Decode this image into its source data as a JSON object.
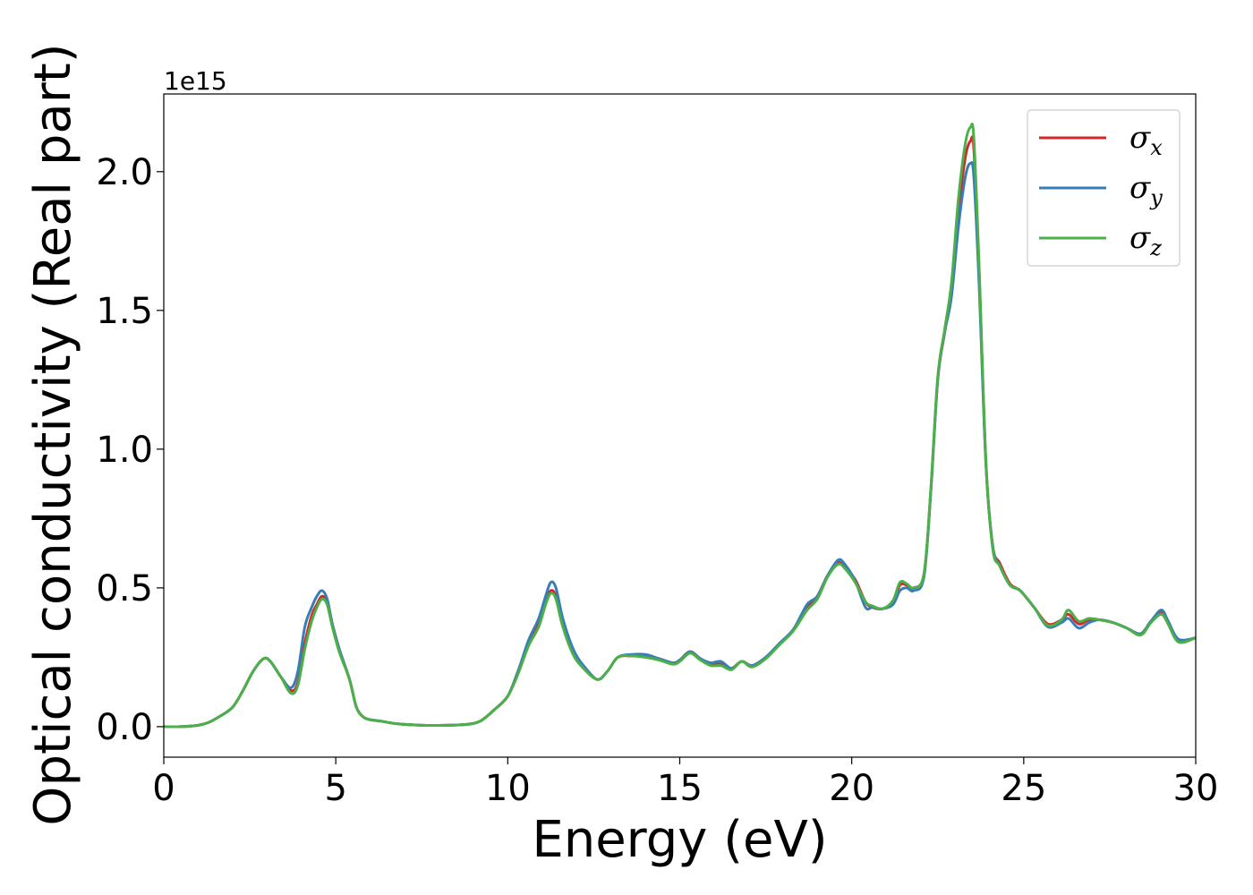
{
  "chart_data": {
    "type": "line",
    "xlabel": "Energy (eV)",
    "ylabel": "Optical conductivity (Real part)",
    "y_offset_label": "1e15",
    "xlim": [
      0,
      30
    ],
    "ylim": [
      -0.11,
      2.28
    ],
    "x_ticks": [
      0,
      5,
      10,
      15,
      20,
      25,
      30
    ],
    "x_tick_labels": [
      "0",
      "5",
      "10",
      "15",
      "20",
      "25",
      "30"
    ],
    "y_ticks": [
      0.0,
      0.5,
      1.0,
      1.5,
      2.0
    ],
    "y_tick_labels": [
      "0.0",
      "0.5",
      "1.0",
      "1.5",
      "2.0"
    ],
    "grid": false,
    "legend_position": "top-right",
    "x": [
      0,
      0.5,
      1.0,
      1.3,
      1.6,
      2.0,
      2.3,
      2.6,
      2.9,
      3.1,
      3.4,
      3.7,
      3.9,
      4.1,
      4.3,
      4.45,
      4.6,
      4.75,
      4.9,
      5.1,
      5.4,
      5.6,
      5.8,
      6.0,
      6.3,
      6.8,
      7.5,
      8.2,
      8.8,
      9.2,
      9.6,
      10.0,
      10.3,
      10.6,
      10.9,
      11.1,
      11.25,
      11.4,
      11.6,
      11.9,
      12.2,
      12.6,
      12.9,
      13.2,
      13.6,
      14.0,
      14.4,
      14.8,
      15.0,
      15.3,
      15.6,
      15.9,
      16.2,
      16.5,
      16.8,
      17.1,
      17.5,
      17.9,
      18.3,
      18.7,
      19.0,
      19.3,
      19.6,
      19.8,
      20.1,
      20.4,
      20.6,
      20.9,
      21.2,
      21.4,
      21.6,
      21.8,
      22.1,
      22.3,
      22.5,
      22.7,
      22.9,
      23.1,
      23.3,
      23.45,
      23.55,
      23.7,
      23.9,
      24.1,
      24.3,
      24.6,
      24.9,
      25.3,
      25.7,
      26.1,
      26.3,
      26.6,
      26.9,
      27.2,
      27.6,
      28.0,
      28.4,
      28.7,
      29.0,
      29.2,
      29.5,
      30.0
    ],
    "series": [
      {
        "name": "σx",
        "color": "#d62728",
        "values": [
          0.0,
          0.0,
          0.005,
          0.015,
          0.035,
          0.07,
          0.13,
          0.2,
          0.245,
          0.235,
          0.18,
          0.13,
          0.16,
          0.3,
          0.4,
          0.44,
          0.47,
          0.45,
          0.37,
          0.28,
          0.17,
          0.07,
          0.035,
          0.025,
          0.02,
          0.01,
          0.005,
          0.005,
          0.008,
          0.02,
          0.06,
          0.11,
          0.2,
          0.3,
          0.37,
          0.45,
          0.49,
          0.47,
          0.37,
          0.27,
          0.22,
          0.17,
          0.2,
          0.25,
          0.255,
          0.255,
          0.245,
          0.23,
          0.24,
          0.27,
          0.245,
          0.225,
          0.225,
          0.21,
          0.235,
          0.22,
          0.25,
          0.3,
          0.35,
          0.43,
          0.47,
          0.545,
          0.59,
          0.575,
          0.53,
          0.45,
          0.43,
          0.425,
          0.45,
          0.51,
          0.51,
          0.5,
          0.55,
          0.85,
          1.25,
          1.42,
          1.58,
          1.85,
          2.05,
          2.11,
          2.08,
          1.65,
          0.95,
          0.65,
          0.59,
          0.515,
          0.49,
          0.43,
          0.37,
          0.385,
          0.405,
          0.37,
          0.385,
          0.385,
          0.375,
          0.355,
          0.335,
          0.38,
          0.415,
          0.37,
          0.31,
          0.32
        ]
      },
      {
        "name": "σy",
        "color": "#377eb8",
        "values": [
          0.0,
          0.0,
          0.005,
          0.015,
          0.035,
          0.07,
          0.13,
          0.2,
          0.245,
          0.235,
          0.18,
          0.14,
          0.2,
          0.36,
          0.43,
          0.47,
          0.49,
          0.46,
          0.37,
          0.28,
          0.17,
          0.07,
          0.035,
          0.025,
          0.02,
          0.01,
          0.005,
          0.005,
          0.008,
          0.02,
          0.06,
          0.11,
          0.2,
          0.31,
          0.39,
          0.47,
          0.52,
          0.5,
          0.39,
          0.28,
          0.22,
          0.17,
          0.2,
          0.25,
          0.26,
          0.26,
          0.245,
          0.23,
          0.24,
          0.27,
          0.245,
          0.23,
          0.235,
          0.21,
          0.235,
          0.22,
          0.25,
          0.3,
          0.35,
          0.44,
          0.47,
          0.545,
          0.6,
          0.585,
          0.525,
          0.43,
          0.43,
          0.425,
          0.44,
          0.49,
          0.5,
          0.49,
          0.54,
          0.85,
          1.25,
          1.42,
          1.55,
          1.8,
          1.98,
          2.03,
          1.98,
          1.6,
          0.95,
          0.65,
          0.58,
          0.51,
          0.49,
          0.43,
          0.36,
          0.375,
          0.39,
          0.355,
          0.375,
          0.385,
          0.375,
          0.355,
          0.335,
          0.38,
          0.42,
          0.38,
          0.315,
          0.32
        ]
      },
      {
        "name": "σz",
        "color": "#4daf4a",
        "values": [
          0.0,
          0.0,
          0.005,
          0.015,
          0.035,
          0.07,
          0.13,
          0.2,
          0.245,
          0.235,
          0.18,
          0.12,
          0.15,
          0.28,
          0.38,
          0.43,
          0.46,
          0.44,
          0.36,
          0.27,
          0.17,
          0.07,
          0.035,
          0.025,
          0.02,
          0.01,
          0.005,
          0.005,
          0.008,
          0.02,
          0.06,
          0.11,
          0.19,
          0.29,
          0.36,
          0.44,
          0.48,
          0.46,
          0.36,
          0.26,
          0.21,
          0.17,
          0.2,
          0.25,
          0.255,
          0.25,
          0.24,
          0.225,
          0.235,
          0.265,
          0.24,
          0.22,
          0.22,
          0.205,
          0.235,
          0.215,
          0.245,
          0.295,
          0.345,
          0.42,
          0.46,
          0.54,
          0.585,
          0.57,
          0.52,
          0.45,
          0.435,
          0.425,
          0.455,
          0.52,
          0.515,
          0.5,
          0.55,
          0.86,
          1.26,
          1.43,
          1.6,
          1.9,
          2.1,
          2.16,
          2.12,
          1.67,
          0.96,
          0.64,
          0.58,
          0.51,
          0.49,
          0.43,
          0.365,
          0.385,
          0.42,
          0.38,
          0.39,
          0.385,
          0.375,
          0.355,
          0.33,
          0.375,
          0.405,
          0.37,
          0.305,
          0.32
        ]
      }
    ]
  }
}
